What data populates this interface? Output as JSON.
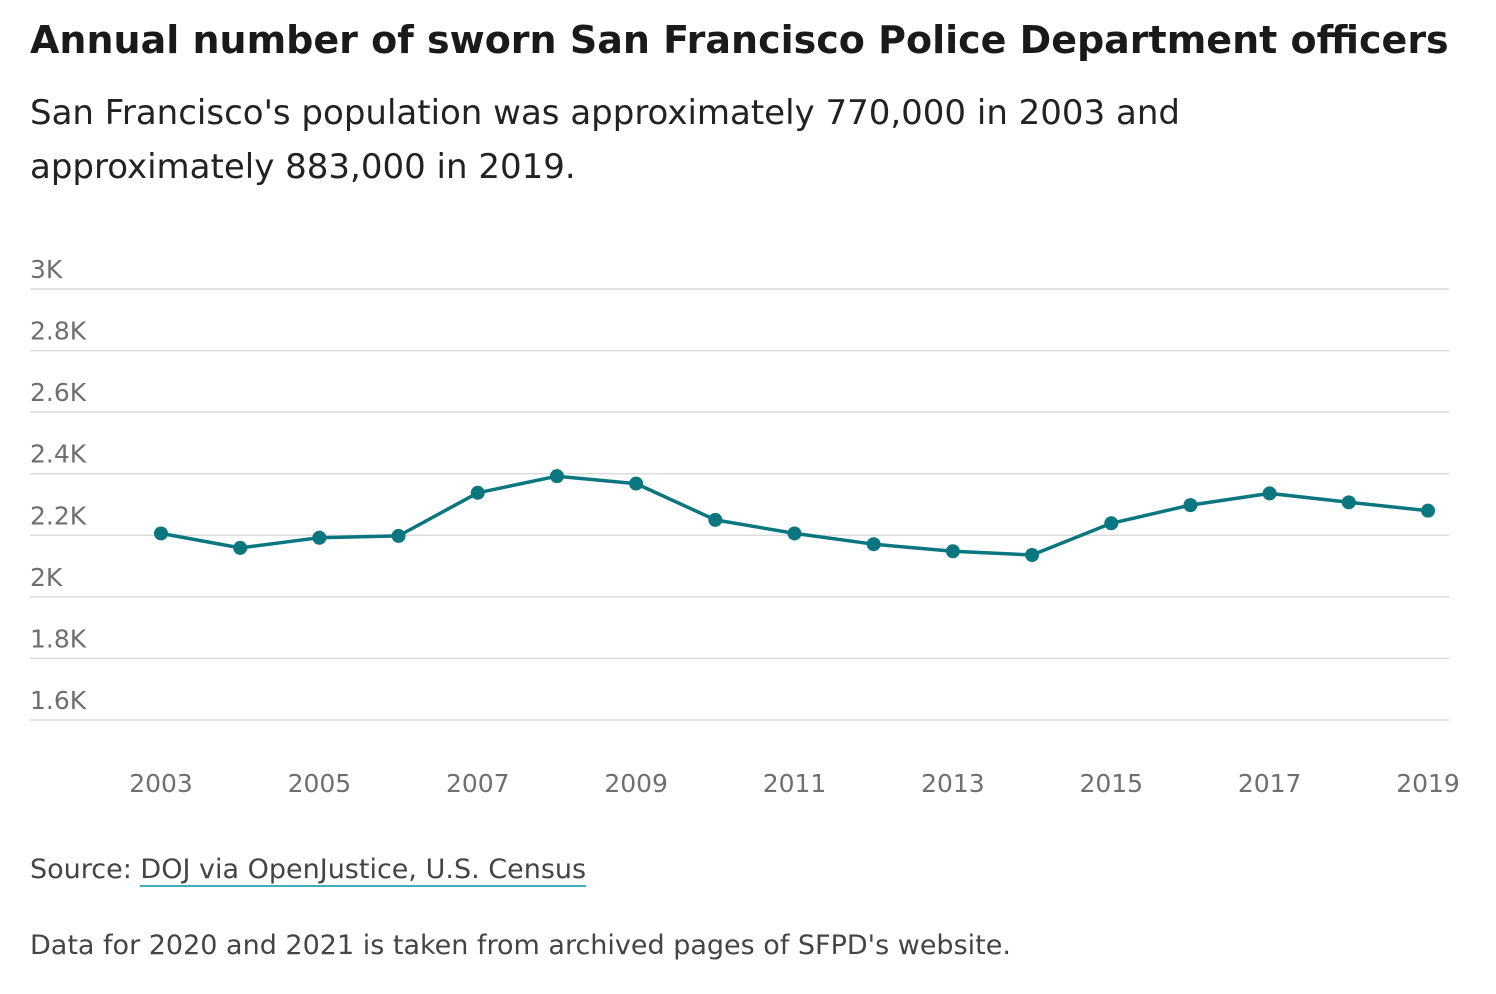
{
  "header": {
    "title": "Annual number of sworn San Francisco Police Department officers",
    "subtitle": "San Francisco's population was approximately 770,000 in 2003 and approximately 883,000 in 2019."
  },
  "chart_data": {
    "type": "line",
    "title": "Annual number of sworn San Francisco Police Department officers",
    "subtitle": "San Francisco's population was approximately 770,000 in 2003 and approximately 883,000 in 2019.",
    "xlabel": "",
    "ylabel": "",
    "x": [
      2003,
      2004,
      2005,
      2006,
      2007,
      2008,
      2009,
      2010,
      2011,
      2012,
      2013,
      2014,
      2015,
      2016,
      2017,
      2018,
      2019
    ],
    "series": [
      {
        "values": [
          2206,
          2159,
          2192,
          2198,
          2338,
          2392,
          2368,
          2250,
          2206,
          2171,
          2148,
          2136,
          2239,
          2298,
          2336,
          2307,
          2280
        ]
      }
    ],
    "x_ticks": [
      2003,
      2005,
      2007,
      2009,
      2011,
      2013,
      2015,
      2017,
      2019
    ],
    "x_tick_labels": [
      "2003",
      "2005",
      "2007",
      "2009",
      "2011",
      "2013",
      "2015",
      "2017",
      "2019"
    ],
    "y_ticks": [
      1600,
      1800,
      2000,
      2200,
      2400,
      2600,
      2800,
      3000
    ],
    "y_tick_labels": [
      "1.6K",
      "1.8K",
      "2K",
      "2.2K",
      "2.4K",
      "2.6K",
      "2.8K",
      "3K"
    ],
    "ylim": [
      1600,
      3000
    ],
    "xlim": [
      2003,
      2019
    ],
    "grid": true,
    "legend": "none",
    "line_color": "#0a7680"
  },
  "footer": {
    "source_prefix": "Source: ",
    "source_link_1": "DOJ via OpenJustice",
    "source_separator": ",",
    "source_link_2": " U.S. Census",
    "note": "Data for 2020 and 2021 is taken from archived pages of SFPD's website."
  }
}
